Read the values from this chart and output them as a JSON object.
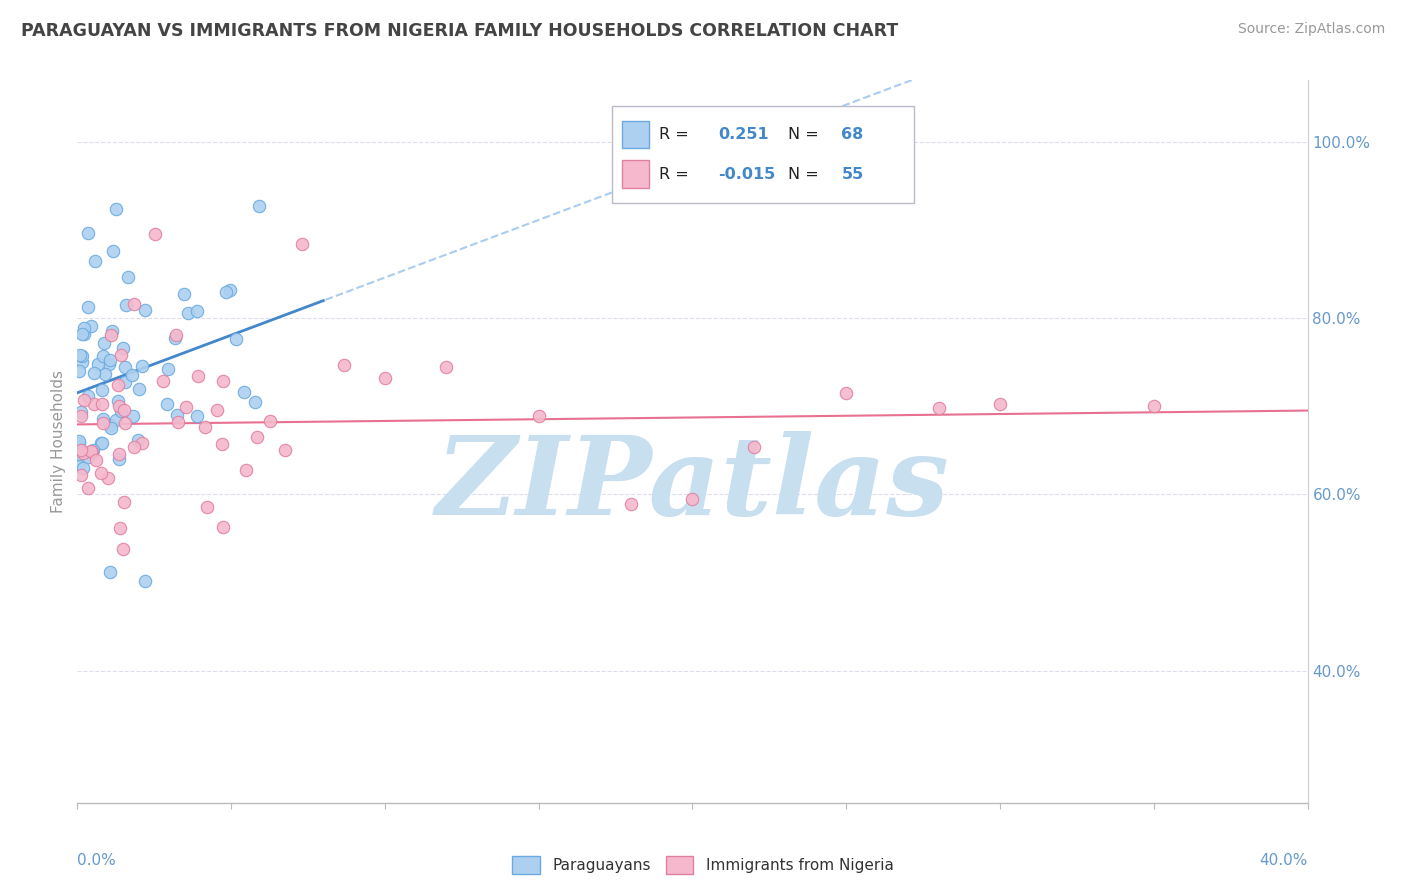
{
  "title": "PARAGUAYAN VS IMMIGRANTS FROM NIGERIA FAMILY HOUSEHOLDS CORRELATION CHART",
  "source": "Source: ZipAtlas.com",
  "ylabel": "Family Households",
  "blue_color": "#ADD0F0",
  "blue_edge_color": "#6AAAE0",
  "pink_color": "#F5B8CC",
  "pink_edge_color": "#E080A0",
  "blue_line_color": "#4488CC",
  "blue_dashed_color": "#AACCEE",
  "pink_line_color": "#E87090",
  "watermark": "ZIPatlas",
  "watermark_color": "#C8DFF0",
  "title_color": "#555555",
  "axis_label_color": "#6699CC",
  "legend_text_color": "#222222",
  "legend_value_color": "#4488CC",
  "background_color": "#FFFFFF",
  "grid_color": "#DDDDEE",
  "xlim_pct": [
    0.0,
    0.4
  ],
  "ylim_pct": [
    0.25,
    1.07
  ],
  "yticks": [
    0.4,
    0.6,
    0.8,
    1.0
  ],
  "ytick_labels": [
    "40.0%",
    "60.0%",
    "80.0%",
    "100.0%"
  ],
  "blue_R": 0.251,
  "blue_N": 68,
  "pink_R": -0.015,
  "pink_N": 55
}
